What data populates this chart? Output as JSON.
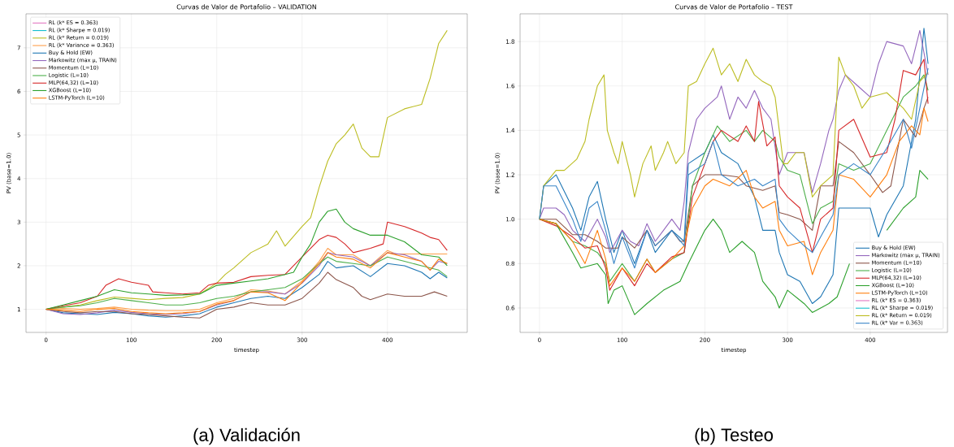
{
  "chart_data": [
    {
      "type": "line",
      "title": "Curvas de Valor de Portafolio – VALIDATION",
      "xlabel": "timestep",
      "ylabel": "PV (base=1.0)",
      "xlim": [
        -23.5,
        493.5
      ],
      "ylim": [
        0.47,
        7.78
      ],
      "xticks": [
        0,
        100,
        200,
        300,
        400
      ],
      "yticks": [
        1,
        2,
        3,
        4,
        5,
        6,
        7
      ],
      "grid": true,
      "legend": "top left",
      "annotations": [
        "(a) Validación"
      ],
      "series": [
        {
          "name": "RL (k* ES = 0.363)",
          "color": "#e377c2"
        },
        {
          "name": "RL (k* Sharpe = 0.019)",
          "color": "#17becf"
        },
        {
          "name": "RL (k* Return = 0.019)",
          "color": "#bcbd22",
          "x": [
            0,
            20,
            40,
            60,
            80,
            100,
            120,
            140,
            160,
            180,
            200,
            210,
            220,
            240,
            260,
            270,
            280,
            300,
            310,
            320,
            330,
            340,
            350,
            360,
            370,
            380,
            390,
            400,
            420,
            440,
            450,
            460,
            470
          ],
          "values": [
            1.0,
            1.05,
            1.1,
            1.2,
            1.28,
            1.25,
            1.22,
            1.25,
            1.27,
            1.35,
            1.6,
            1.8,
            1.95,
            2.3,
            2.5,
            2.8,
            2.45,
            2.9,
            3.1,
            3.8,
            4.4,
            4.8,
            5.0,
            5.25,
            4.7,
            4.5,
            4.5,
            5.4,
            5.6,
            5.7,
            6.3,
            7.1,
            7.4
          ]
        },
        {
          "name": "RL (k* Variance = 0.363)",
          "color": "#ff9f4a",
          "x": [
            0,
            20,
            40,
            60,
            80,
            100,
            120,
            140,
            160,
            180,
            200,
            220,
            240,
            260,
            280,
            300,
            320,
            330,
            340,
            360,
            380,
            400,
            410,
            470
          ],
          "values": [
            1.0,
            1.02,
            1.0,
            1.02,
            1.05,
            1.0,
            0.98,
            0.97,
            0.97,
            1.0,
            1.15,
            1.25,
            1.45,
            1.42,
            1.35,
            1.65,
            2.1,
            2.4,
            2.25,
            2.25,
            2.0,
            2.35,
            2.27,
            2.27
          ]
        },
        {
          "name": "Buy & Hold (EW)",
          "color": "#1f77b4",
          "x": [
            0,
            20,
            40,
            60,
            80,
            100,
            120,
            140,
            160,
            180,
            200,
            220,
            240,
            260,
            280,
            300,
            320,
            330,
            340,
            360,
            380,
            400,
            420,
            440,
            450,
            460,
            470
          ],
          "values": [
            1.0,
            0.92,
            0.9,
            0.88,
            0.93,
            0.9,
            0.85,
            0.82,
            0.85,
            0.9,
            1.05,
            1.15,
            1.25,
            1.3,
            1.25,
            1.5,
            1.8,
            2.1,
            1.95,
            2.0,
            1.75,
            2.05,
            2.0,
            1.85,
            1.7,
            1.85,
            1.72
          ]
        },
        {
          "name": "Markowitz (max μ, TRAIN)",
          "color": "#9467bd",
          "x": [
            0,
            20,
            40,
            60,
            80,
            100,
            120,
            140,
            160,
            180,
            200,
            220,
            240,
            260,
            280,
            300,
            320,
            330,
            340,
            360,
            380,
            400,
            420,
            440,
            450,
            460,
            470
          ],
          "values": [
            1.0,
            0.9,
            0.88,
            0.92,
            0.98,
            0.93,
            0.9,
            0.88,
            0.9,
            0.95,
            1.1,
            1.2,
            1.4,
            1.4,
            1.35,
            1.6,
            2.0,
            2.3,
            2.25,
            2.2,
            2.0,
            2.3,
            2.25,
            2.1,
            1.9,
            2.1,
            2.05
          ]
        },
        {
          "name": "Momentum (L=10)",
          "color": "#8c564b",
          "x": [
            0,
            20,
            40,
            60,
            80,
            100,
            120,
            140,
            160,
            180,
            200,
            220,
            240,
            260,
            280,
            300,
            320,
            330,
            340,
            360,
            370,
            380,
            400,
            420,
            440,
            455,
            470
          ],
          "values": [
            1.0,
            0.95,
            0.92,
            0.95,
            0.95,
            0.9,
            0.88,
            0.85,
            0.82,
            0.8,
            1.0,
            1.05,
            1.15,
            1.1,
            1.1,
            1.25,
            1.6,
            1.85,
            1.68,
            1.5,
            1.3,
            1.22,
            1.35,
            1.3,
            1.3,
            1.4,
            1.3
          ]
        },
        {
          "name": "Logistic (L=10)",
          "color": "#4daf4a",
          "x": [
            0,
            20,
            40,
            60,
            80,
            100,
            120,
            140,
            160,
            180,
            200,
            220,
            240,
            260,
            280,
            300,
            320,
            330,
            340,
            360,
            380,
            400,
            420,
            440,
            460,
            470
          ],
          "values": [
            1.0,
            1.05,
            1.08,
            1.15,
            1.25,
            1.2,
            1.15,
            1.1,
            1.1,
            1.15,
            1.25,
            1.3,
            1.4,
            1.45,
            1.5,
            1.7,
            2.05,
            2.2,
            2.1,
            2.05,
            2.0,
            2.2,
            2.1,
            2.0,
            1.9,
            1.75
          ]
        },
        {
          "name": "MLP(64,32) (L=10)",
          "color": "#d62728",
          "x": [
            0,
            20,
            40,
            60,
            70,
            85,
            100,
            120,
            125,
            140,
            160,
            180,
            190,
            200,
            220,
            240,
            260,
            280,
            300,
            320,
            330,
            340,
            350,
            360,
            380,
            395,
            400,
            420,
            440,
            450,
            460,
            470
          ],
          "values": [
            1.0,
            1.08,
            1.15,
            1.3,
            1.55,
            1.7,
            1.62,
            1.55,
            1.4,
            1.38,
            1.35,
            1.38,
            1.55,
            1.6,
            1.62,
            1.75,
            1.78,
            1.8,
            2.2,
            2.6,
            2.7,
            2.65,
            2.5,
            2.3,
            2.4,
            2.5,
            3.0,
            2.9,
            2.75,
            2.65,
            2.6,
            2.35
          ]
        },
        {
          "name": "XGBoost (L=10)",
          "color": "#2ca02c",
          "x": [
            0,
            20,
            40,
            60,
            80,
            100,
            120,
            140,
            160,
            180,
            200,
            220,
            240,
            260,
            280,
            290,
            300,
            310,
            320,
            330,
            340,
            350,
            360,
            380,
            400,
            420,
            440,
            460,
            470
          ],
          "values": [
            1.0,
            1.1,
            1.2,
            1.3,
            1.45,
            1.38,
            1.35,
            1.32,
            1.33,
            1.35,
            1.55,
            1.6,
            1.65,
            1.7,
            1.8,
            1.85,
            2.2,
            2.5,
            3.0,
            3.25,
            3.3,
            3.0,
            2.85,
            2.7,
            2.7,
            2.55,
            2.25,
            2.2,
            2.0
          ]
        },
        {
          "name": "LSTM-PyTorch (L=10)",
          "color": "#ff7f0e",
          "x": [
            0,
            20,
            40,
            60,
            80,
            100,
            120,
            140,
            160,
            180,
            200,
            220,
            240,
            260,
            280,
            300,
            320,
            330,
            340,
            360,
            380,
            400,
            420,
            440,
            450,
            460,
            470
          ],
          "values": [
            1.0,
            0.98,
            0.95,
            1.0,
            1.02,
            0.95,
            0.92,
            0.9,
            0.92,
            0.95,
            1.12,
            1.2,
            1.4,
            1.38,
            1.2,
            1.62,
            2.05,
            2.3,
            2.2,
            2.15,
            1.95,
            2.3,
            2.2,
            2.1,
            1.9,
            2.15,
            2.05
          ]
        }
      ]
    },
    {
      "type": "line",
      "title": "Curvas de Valor de Portafolio – TEST",
      "xlabel": "timestep",
      "ylabel": "PV (base=1.0)",
      "xlim": [
        -23.5,
        493.5
      ],
      "ylim": [
        0.49,
        1.925
      ],
      "xticks": [
        0,
        100,
        200,
        300,
        400
      ],
      "yticks": [
        {
          "value": 0.6,
          "label": "0.6"
        },
        {
          "value": 0.8,
          "label": "0.8"
        },
        {
          "value": 1.0,
          "label": "1.0"
        },
        {
          "value": 1.2,
          "label": "1.2"
        },
        {
          "value": 1.4,
          "label": "1.4"
        },
        {
          "value": 1.6,
          "label": "1.6"
        },
        {
          "value": 1.8,
          "label": "1.8"
        }
      ],
      "grid": true,
      "legend": "bottom right",
      "annotations": [
        "(b) Testeo"
      ],
      "series": [
        {
          "name": "Buy & Hold (EW)",
          "color": "#1f77b4",
          "x": [
            0,
            5,
            20,
            40,
            50,
            60,
            70,
            80,
            90,
            100,
            115,
            130,
            140,
            160,
            175,
            180,
            200,
            210,
            220,
            240,
            260,
            270,
            285,
            290,
            300,
            315,
            330,
            340,
            355,
            362,
            380,
            400,
            410,
            420,
            440,
            455,
            465,
            470
          ],
          "values": [
            1.0,
            1.15,
            1.2,
            1.05,
            0.95,
            1.1,
            1.17,
            1.0,
            0.85,
            0.95,
            0.8,
            0.95,
            0.85,
            0.95,
            0.9,
            1.25,
            1.3,
            1.38,
            1.3,
            1.25,
            1.1,
            0.95,
            0.95,
            0.85,
            0.75,
            0.72,
            0.62,
            0.65,
            0.75,
            1.05,
            1.05,
            1.05,
            0.92,
            1.02,
            1.15,
            1.45,
            1.86,
            1.7
          ]
        },
        {
          "name": "Markowitz (max μ, TRAIN)",
          "color": "#9467bd",
          "x": [
            0,
            5,
            20,
            30,
            40,
            55,
            70,
            80,
            85,
            100,
            110,
            120,
            130,
            140,
            150,
            160,
            170,
            175,
            180,
            190,
            200,
            215,
            220,
            230,
            240,
            250,
            260,
            270,
            280,
            290,
            300,
            320,
            330,
            340,
            350,
            355,
            362,
            370,
            385,
            400,
            410,
            420,
            440,
            450,
            460,
            470
          ],
          "values": [
            1.0,
            1.05,
            1.05,
            1.02,
            0.95,
            0.9,
            1.0,
            0.92,
            0.85,
            0.95,
            0.9,
            0.88,
            0.98,
            0.9,
            0.95,
            1.0,
            0.95,
            1.08,
            1.3,
            1.45,
            1.5,
            1.55,
            1.6,
            1.45,
            1.55,
            1.5,
            1.58,
            1.5,
            1.45,
            1.2,
            1.3,
            1.3,
            1.12,
            1.25,
            1.4,
            1.45,
            1.58,
            1.65,
            1.6,
            1.55,
            1.7,
            1.8,
            1.78,
            1.7,
            1.85,
            1.65
          ]
        },
        {
          "name": "Momentum (L=10)",
          "color": "#8c564b",
          "x": [
            0,
            20,
            40,
            55,
            70,
            80,
            95,
            100,
            115,
            130,
            140,
            160,
            170,
            175,
            185,
            200,
            220,
            240,
            250,
            270,
            285,
            290,
            300,
            315,
            330,
            340,
            355,
            362,
            380,
            400,
            415,
            425,
            440,
            455,
            465,
            470
          ],
          "values": [
            1.0,
            1.0,
            0.93,
            0.93,
            0.9,
            0.87,
            0.87,
            0.92,
            0.87,
            0.95,
            0.88,
            0.95,
            0.9,
            0.9,
            1.15,
            1.2,
            1.2,
            1.19,
            1.15,
            1.13,
            1.15,
            1.03,
            1.02,
            1.0,
            0.95,
            1.15,
            1.15,
            1.35,
            1.3,
            1.2,
            1.12,
            1.15,
            1.45,
            1.37,
            1.5,
            1.55
          ]
        },
        {
          "name": "Logistic (L=10)",
          "color": "#4daf4a",
          "x": [
            0,
            20,
            40,
            55,
            70,
            80,
            85,
            100,
            115,
            130,
            140,
            160,
            175,
            185,
            200,
            215,
            230,
            250,
            260,
            270,
            285,
            290,
            300,
            315,
            330,
            340,
            355,
            362,
            380,
            400,
            420,
            440,
            455,
            465,
            470
          ],
          "values": [
            1.0,
            0.98,
            0.9,
            0.88,
            0.85,
            0.8,
            0.72,
            0.8,
            0.72,
            0.82,
            0.76,
            0.82,
            0.85,
            1.15,
            1.3,
            1.42,
            1.35,
            1.4,
            1.35,
            1.4,
            1.35,
            1.28,
            1.22,
            1.2,
            0.98,
            1.05,
            1.08,
            1.25,
            1.22,
            1.25,
            1.4,
            1.55,
            1.6,
            1.65,
            1.58
          ]
        },
        {
          "name": "MLP(64,32) (L=10)",
          "color": "#d62728",
          "x": [
            0,
            20,
            40,
            55,
            70,
            80,
            85,
            100,
            115,
            130,
            140,
            160,
            175,
            185,
            200,
            210,
            220,
            240,
            250,
            260,
            265,
            275,
            285,
            290,
            300,
            315,
            330,
            340,
            355,
            362,
            380,
            400,
            420,
            430,
            440,
            455,
            465,
            470
          ],
          "values": [
            1.0,
            0.97,
            0.92,
            0.87,
            0.88,
            0.78,
            0.68,
            0.78,
            0.7,
            0.8,
            0.76,
            0.83,
            0.85,
            1.1,
            1.25,
            1.35,
            1.4,
            1.35,
            1.42,
            1.35,
            1.53,
            1.33,
            1.37,
            1.15,
            1.1,
            1.05,
            0.85,
            1.0,
            1.05,
            1.4,
            1.45,
            1.28,
            1.3,
            1.45,
            1.67,
            1.65,
            1.72,
            1.52
          ]
        },
        {
          "name": "XGBoost (L=10)",
          "color": "#2ca02c",
          "x": [
            0,
            20,
            40,
            50,
            70,
            80,
            83,
            90,
            100,
            115,
            130,
            150,
            170,
            180,
            200,
            210,
            220,
            230,
            245,
            260,
            270,
            285,
            290,
            300,
            320,
            330,
            350,
            360,
            375,
            390,
            400,
            420,
            440,
            455,
            460,
            470
          ],
          "values": [
            1.0,
            0.98,
            0.85,
            0.78,
            0.8,
            0.75,
            0.62,
            0.68,
            0.7,
            0.57,
            0.62,
            0.68,
            0.72,
            0.8,
            0.95,
            1.0,
            0.95,
            0.85,
            0.9,
            0.85,
            0.72,
            0.65,
            0.6,
            0.68,
            0.62,
            0.58,
            0.62,
            0.65,
            0.8,
            null,
            null,
            0.95,
            1.05,
            1.1,
            1.22,
            1.18
          ]
        },
        {
          "name": "LSTM-PyTorch (L=10)",
          "color": "#ff7f0e",
          "x": [
            0,
            20,
            40,
            55,
            70,
            80,
            85,
            100,
            115,
            130,
            140,
            160,
            175,
            185,
            200,
            210,
            230,
            250,
            260,
            270,
            285,
            290,
            300,
            320,
            330,
            340,
            355,
            362,
            380,
            400,
            420,
            435,
            450,
            460,
            465,
            470
          ],
          "values": [
            1.0,
            0.98,
            0.9,
            0.8,
            0.95,
            0.82,
            0.7,
            0.78,
            0.72,
            0.82,
            0.76,
            0.82,
            0.88,
            1.05,
            1.15,
            1.18,
            1.15,
            1.22,
            1.1,
            1.05,
            1.08,
            0.95,
            0.88,
            0.9,
            0.75,
            0.85,
            0.95,
            1.2,
            1.18,
            1.1,
            1.2,
            1.35,
            1.42,
            1.38,
            1.5,
            1.44
          ]
        },
        {
          "name": "RL (k* ES = 0.363)",
          "color": "#e377c2"
        },
        {
          "name": "RL (k* Sharpe = 0.019)",
          "color": "#17becf"
        },
        {
          "name": "RL (k* Return = 0.019)",
          "color": "#bcbd22",
          "x": [
            0,
            5,
            20,
            30,
            45,
            55,
            60,
            70,
            78,
            82,
            90,
            95,
            100,
            110,
            115,
            125,
            135,
            140,
            150,
            155,
            165,
            175,
            180,
            190,
            200,
            210,
            220,
            230,
            240,
            250,
            260,
            270,
            280,
            285,
            295,
            300,
            310,
            320,
            330,
            340,
            355,
            362,
            370,
            380,
            390,
            400,
            420,
            440,
            450,
            460,
            470
          ],
          "values": [
            1.0,
            1.15,
            1.22,
            1.22,
            1.27,
            1.35,
            1.45,
            1.6,
            1.65,
            1.4,
            1.3,
            1.25,
            1.35,
            1.2,
            1.1,
            1.25,
            1.33,
            1.22,
            1.3,
            1.35,
            1.25,
            1.3,
            1.6,
            1.62,
            1.7,
            1.77,
            1.65,
            1.7,
            1.62,
            1.72,
            1.65,
            1.62,
            1.6,
            1.55,
            1.25,
            1.25,
            1.3,
            1.3,
            1.1,
            1.15,
            1.2,
            1.73,
            1.65,
            1.6,
            1.5,
            1.55,
            1.57,
            1.5,
            1.45,
            1.62,
            1.66
          ]
        },
        {
          "name": "RL (k* Var = 0.363)",
          "color": "#3a86c8",
          "x": [
            0,
            5,
            20,
            40,
            50,
            60,
            70,
            80,
            90,
            100,
            115,
            130,
            140,
            160,
            175,
            180,
            200,
            210,
            220,
            240,
            260,
            270,
            285,
            290,
            300,
            320,
            330,
            340,
            355,
            362,
            380,
            400,
            420,
            440,
            450,
            460,
            470
          ],
          "values": [
            1.0,
            1.15,
            1.15,
            1.0,
            0.9,
            1.05,
            1.08,
            0.95,
            0.8,
            0.92,
            0.78,
            0.95,
            0.88,
            0.95,
            0.88,
            1.2,
            1.25,
            1.35,
            1.2,
            1.15,
            1.18,
            1.15,
            1.18,
            1.0,
            0.95,
            0.88,
            0.85,
            0.92,
            1.02,
            1.2,
            1.25,
            1.2,
            1.32,
            1.45,
            1.32,
            1.5,
            1.68
          ]
        }
      ]
    }
  ]
}
